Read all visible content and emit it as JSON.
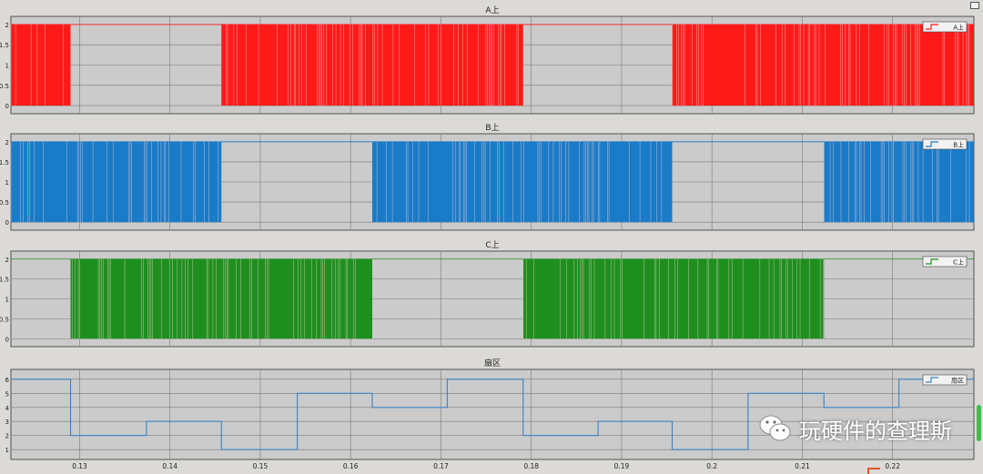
{
  "chart_data": [
    {
      "type": "line",
      "title": "A上",
      "legend": "A上",
      "legend_position": "top-right",
      "color": "#ff1a1a",
      "yticks": [
        0,
        0.5,
        1,
        1.5,
        2
      ],
      "ylim": [
        -0.2,
        2.2
      ],
      "grid": true,
      "series": [
        {
          "name": "A上",
          "pwm_intervals": [
            [
              0.1224,
              0.129
            ],
            [
              0.1457,
              0.1791
            ],
            [
              0.1956,
              0.229
            ]
          ]
        }
      ]
    },
    {
      "type": "line",
      "title": "B上",
      "legend": "B上",
      "legend_position": "top-right",
      "color": "#1a7bc8",
      "yticks": [
        0,
        0.5,
        1,
        1.5,
        2
      ],
      "ylim": [
        -0.2,
        2.2
      ],
      "grid": true,
      "series": [
        {
          "name": "B上",
          "pwm_intervals": [
            [
              0.1224,
              0.1457
            ],
            [
              0.1624,
              0.1956
            ],
            [
              0.2124,
              0.229
            ]
          ]
        }
      ]
    },
    {
      "type": "line",
      "title": "C上",
      "legend": "C上",
      "legend_position": "top-right",
      "color": "#1e8f1e",
      "yticks": [
        0,
        0.5,
        1,
        1.5,
        2
      ],
      "ylim": [
        -0.2,
        2.2
      ],
      "grid": true,
      "series": [
        {
          "name": "C上",
          "pwm_intervals": [
            [
              0.129,
              0.1624
            ],
            [
              0.1791,
              0.2124
            ]
          ]
        }
      ]
    },
    {
      "type": "line",
      "title": "扇区",
      "legend": "扇区",
      "legend_position": "top-right",
      "color": "#3a82c4",
      "yticks": [
        1,
        2,
        3,
        4,
        5,
        6
      ],
      "ylim": [
        0.3,
        6.7
      ],
      "grid": true,
      "step": true,
      "series": [
        {
          "name": "扇区",
          "x": [
            0.1224,
            0.129,
            0.1374,
            0.1457,
            0.1541,
            0.1624,
            0.1707,
            0.1791,
            0.1874,
            0.1956,
            0.204,
            0.2124,
            0.2207,
            0.229
          ],
          "y": [
            6,
            2,
            3,
            1,
            5,
            4,
            6,
            2,
            3,
            1,
            5,
            4,
            6,
            6
          ]
        }
      ]
    }
  ],
  "x_axis": {
    "xlim": [
      0.1224,
      0.229
    ],
    "ticks": [
      0.13,
      0.14,
      0.15,
      0.16,
      0.17,
      0.18,
      0.19,
      0.2,
      0.21,
      0.22
    ],
    "tick_labels": [
      "0.13",
      "0.14",
      "0.15",
      "0.16",
      "0.17",
      "0.18",
      "0.19",
      "0.2",
      "0.21",
      "0.22"
    ]
  },
  "watermark": {
    "text": "玩硬件的查理斯",
    "icon": "wechat-icon"
  }
}
